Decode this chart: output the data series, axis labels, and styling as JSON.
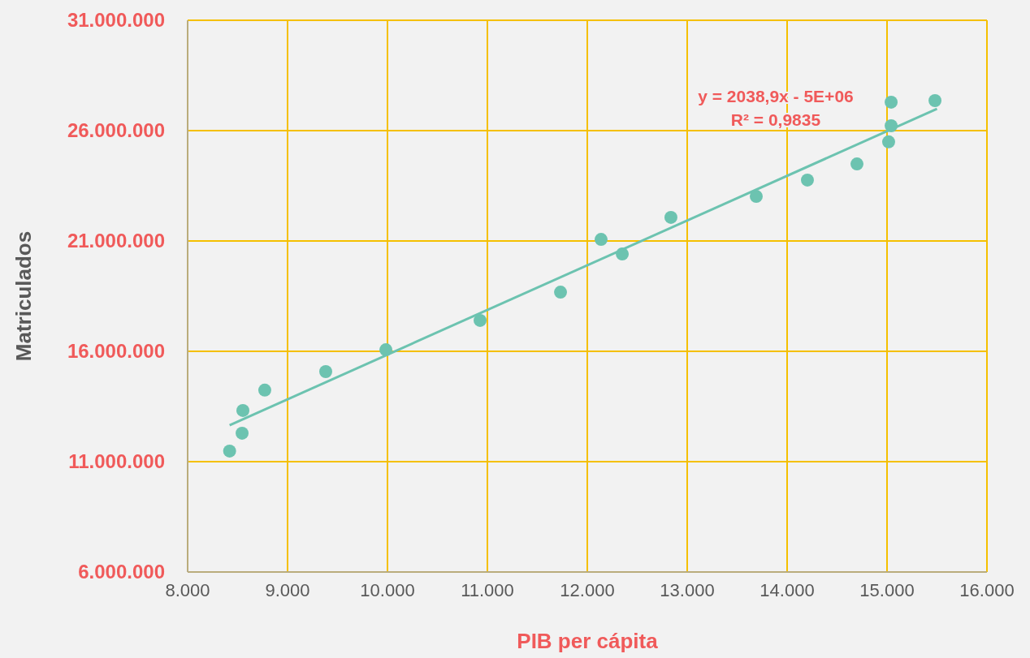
{
  "chart_data": {
    "type": "scatter",
    "xlabel": "PIB per cápita",
    "ylabel": "Matriculados",
    "xlim": [
      8000,
      16000
    ],
    "ylim": [
      6000000,
      31000000
    ],
    "xticks": [
      {
        "value": 8000,
        "label": "8.000"
      },
      {
        "value": 9000,
        "label": "9.000"
      },
      {
        "value": 10000,
        "label": "10.000"
      },
      {
        "value": 11000,
        "label": "11.000"
      },
      {
        "value": 12000,
        "label": "12.000"
      },
      {
        "value": 13000,
        "label": "13.000"
      },
      {
        "value": 14000,
        "label": "14.000"
      },
      {
        "value": 15000,
        "label": "15.000"
      },
      {
        "value": 16000,
        "label": "16.000"
      }
    ],
    "yticks": [
      {
        "value": 6000000,
        "label": "6.000.000"
      },
      {
        "value": 11000000,
        "label": "11.000.000"
      },
      {
        "value": 16000000,
        "label": "16.000.000"
      },
      {
        "value": 21000000,
        "label": "21.000.000"
      },
      {
        "value": 26000000,
        "label": "26.000.000"
      },
      {
        "value": 31000000,
        "label": "31.000.000"
      }
    ],
    "grid": true,
    "series": [
      {
        "marker": "circle",
        "color": "#6cc3b0",
        "x": [
          8420,
          8545,
          8553,
          8772,
          9382,
          9984,
          10927,
          11732,
          12138,
          12350,
          12837,
          13691,
          14203,
          14699,
          15016,
          15041,
          15041,
          15480
        ],
        "values": [
          11480000,
          12290000,
          13320000,
          14240000,
          15080000,
          16070000,
          17400000,
          18680000,
          21070000,
          20410000,
          22070000,
          23020000,
          23760000,
          24490000,
          25490000,
          26220000,
          27290000,
          27360000
        ]
      },
      {
        "type": "line",
        "color": "#6cc3b0",
        "x": [
          8420,
          15500
        ],
        "values": [
          12650000,
          26990000
        ]
      }
    ],
    "annotations": [
      "y = 2038,9x - 5E+06",
      "R² = 0,9835"
    ]
  }
}
